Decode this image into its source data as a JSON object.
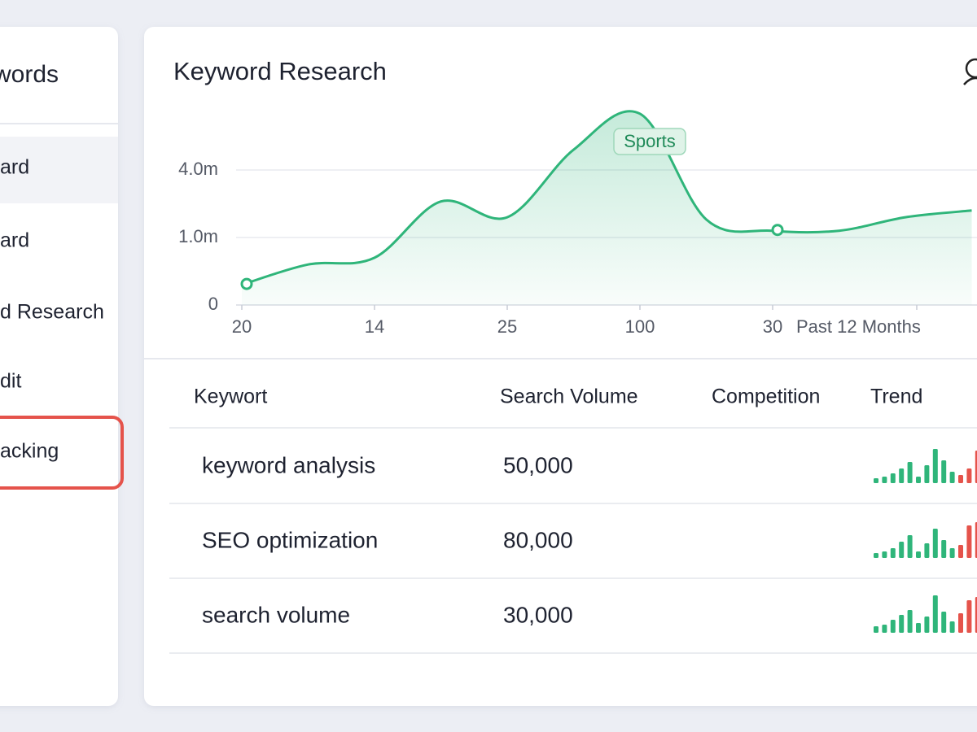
{
  "sidebar": {
    "title": "words",
    "items": [
      "ard",
      "ard",
      "d Research",
      "dit",
      "acking"
    ]
  },
  "header": {
    "title": "Keyword Research"
  },
  "chart_data": {
    "type": "line",
    "x_label": "Past 12 Months",
    "categories": [
      "20",
      null,
      "14",
      null,
      "25",
      null,
      "100",
      null,
      "30",
      null,
      null,
      null
    ],
    "series": [
      {
        "name": "Sports",
        "color": "#2fb57a",
        "values": [
          300000,
          600000,
          700000,
          2600000,
          1900000,
          4900000,
          6500000,
          1800000,
          1300000,
          1300000,
          1900000,
          2200000
        ]
      }
    ],
    "markers": [
      0,
      8
    ],
    "ylim": [
      0,
      6500000
    ],
    "yticks": [
      {
        "value": 0,
        "label": "0"
      },
      {
        "value": 1000000,
        "label": "1.0m"
      },
      {
        "value": 4000000,
        "label": "4.0m"
      }
    ],
    "grid": true
  },
  "table": {
    "columns": [
      "Keywort",
      "Search Volume",
      "Competition",
      "Trend"
    ],
    "rows": [
      {
        "keyword": "keyword analysis",
        "volume": "50,000",
        "trend": {
          "values": [
            6,
            8,
            12,
            18,
            26,
            8,
            22,
            42,
            28,
            14,
            10,
            18,
            40
          ],
          "colors": [
            "#2fb57a",
            "#2fb57a",
            "#2fb57a",
            "#2fb57a",
            "#2fb57a",
            "#2fb57a",
            "#2fb57a",
            "#2fb57a",
            "#2fb57a",
            "#2fb57a",
            "#e5534b",
            "#e5534b",
            "#e5534b"
          ]
        }
      },
      {
        "keyword": "SEO optimization",
        "volume": "80,000",
        "trend": {
          "values": [
            6,
            8,
            12,
            20,
            28,
            8,
            18,
            36,
            22,
            12,
            16,
            40,
            44
          ],
          "colors": [
            "#2fb57a",
            "#2fb57a",
            "#2fb57a",
            "#2fb57a",
            "#2fb57a",
            "#2fb57a",
            "#2fb57a",
            "#2fb57a",
            "#2fb57a",
            "#2fb57a",
            "#e5534b",
            "#e5534b",
            "#e5534b"
          ]
        }
      },
      {
        "keyword": "search volume",
        "volume": "30,000",
        "trend": {
          "values": [
            8,
            10,
            16,
            22,
            28,
            12,
            20,
            46,
            26,
            14,
            24,
            40,
            44
          ],
          "colors": [
            "#2fb57a",
            "#2fb57a",
            "#2fb57a",
            "#2fb57a",
            "#2fb57a",
            "#2fb57a",
            "#2fb57a",
            "#2fb57a",
            "#2fb57a",
            "#2fb57a",
            "#e5534b",
            "#e5534b",
            "#e5534b"
          ]
        }
      }
    ]
  }
}
